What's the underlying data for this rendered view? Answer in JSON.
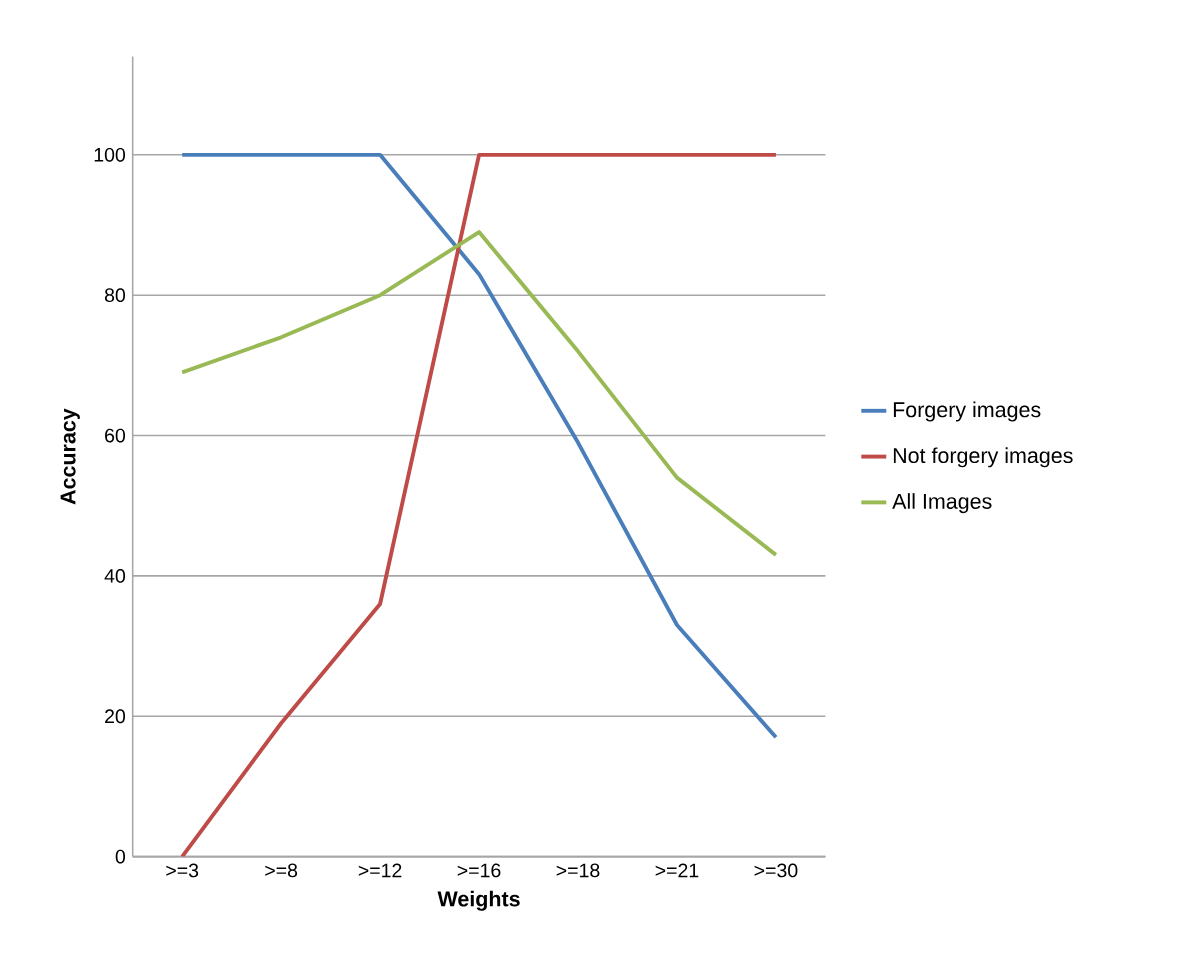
{
  "chart_data": {
    "type": "line",
    "xlabel": "Weights",
    "ylabel": "Accuracy",
    "categories": [
      ">=3",
      ">=8",
      ">=12",
      ">=16",
      ">=18",
      ">=21",
      ">=30"
    ],
    "series": [
      {
        "name": "Forgery images",
        "color": "#4a7ebb",
        "values": [
          100,
          100,
          100,
          83,
          59,
          33,
          17
        ]
      },
      {
        "name": "Not forgery images",
        "color": "#be4b48",
        "values": [
          0,
          19,
          36,
          100,
          100,
          100,
          100
        ]
      },
      {
        "name": "All Images",
        "color": "#98b954",
        "values": [
          69,
          74,
          80,
          89,
          72,
          54,
          43
        ]
      }
    ],
    "ylim": [
      0,
      114
    ],
    "yticks": [
      0,
      20,
      40,
      60,
      80,
      100
    ],
    "grid": "y",
    "legend": "right",
    "marker": "none",
    "line_style": "solid"
  }
}
